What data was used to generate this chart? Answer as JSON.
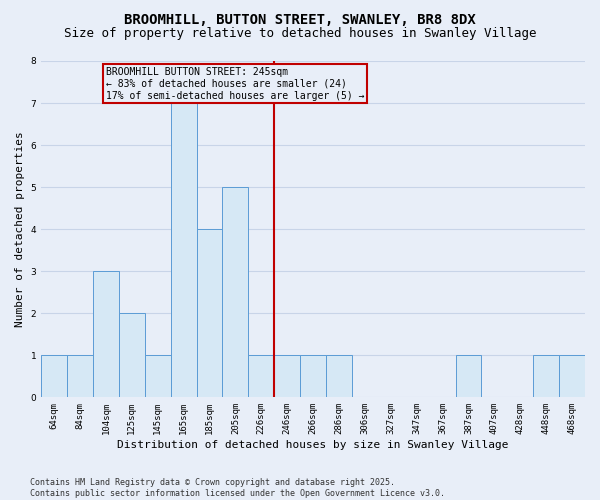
{
  "title": "BROOMHILL, BUTTON STREET, SWANLEY, BR8 8DX",
  "subtitle": "Size of property relative to detached houses in Swanley Village",
  "xlabel": "Distribution of detached houses by size in Swanley Village",
  "ylabel": "Number of detached properties",
  "categories": [
    "64sqm",
    "84sqm",
    "104sqm",
    "125sqm",
    "145sqm",
    "165sqm",
    "185sqm",
    "205sqm",
    "226sqm",
    "246sqm",
    "266sqm",
    "286sqm",
    "306sqm",
    "327sqm",
    "347sqm",
    "367sqm",
    "387sqm",
    "407sqm",
    "428sqm",
    "448sqm",
    "468sqm"
  ],
  "values": [
    1,
    1,
    3,
    2,
    1,
    7,
    4,
    5,
    1,
    1,
    1,
    1,
    0,
    0,
    0,
    0,
    1,
    0,
    0,
    1,
    1
  ],
  "bar_color": "#d6e8f5",
  "bar_edge_color": "#5b9bd5",
  "vline_color": "#c00000",
  "annotation_line1": "BROOMHILL BUTTON STREET: 245sqm",
  "annotation_line2": "← 83% of detached houses are smaller (24)",
  "annotation_line3": "17% of semi-detached houses are larger (5) →",
  "annotation_box_edgecolor": "#c00000",
  "ylim": [
    0,
    8
  ],
  "yticks": [
    0,
    1,
    2,
    3,
    4,
    5,
    6,
    7,
    8
  ],
  "background_color": "#e8eef8",
  "grid_color": "#c8d4e8",
  "footer_text": "Contains HM Land Registry data © Crown copyright and database right 2025.\nContains public sector information licensed under the Open Government Licence v3.0.",
  "title_fontsize": 10,
  "subtitle_fontsize": 9,
  "ylabel_fontsize": 8,
  "xlabel_fontsize": 8,
  "bar_width": 1.0,
  "vline_index": 9.0
}
